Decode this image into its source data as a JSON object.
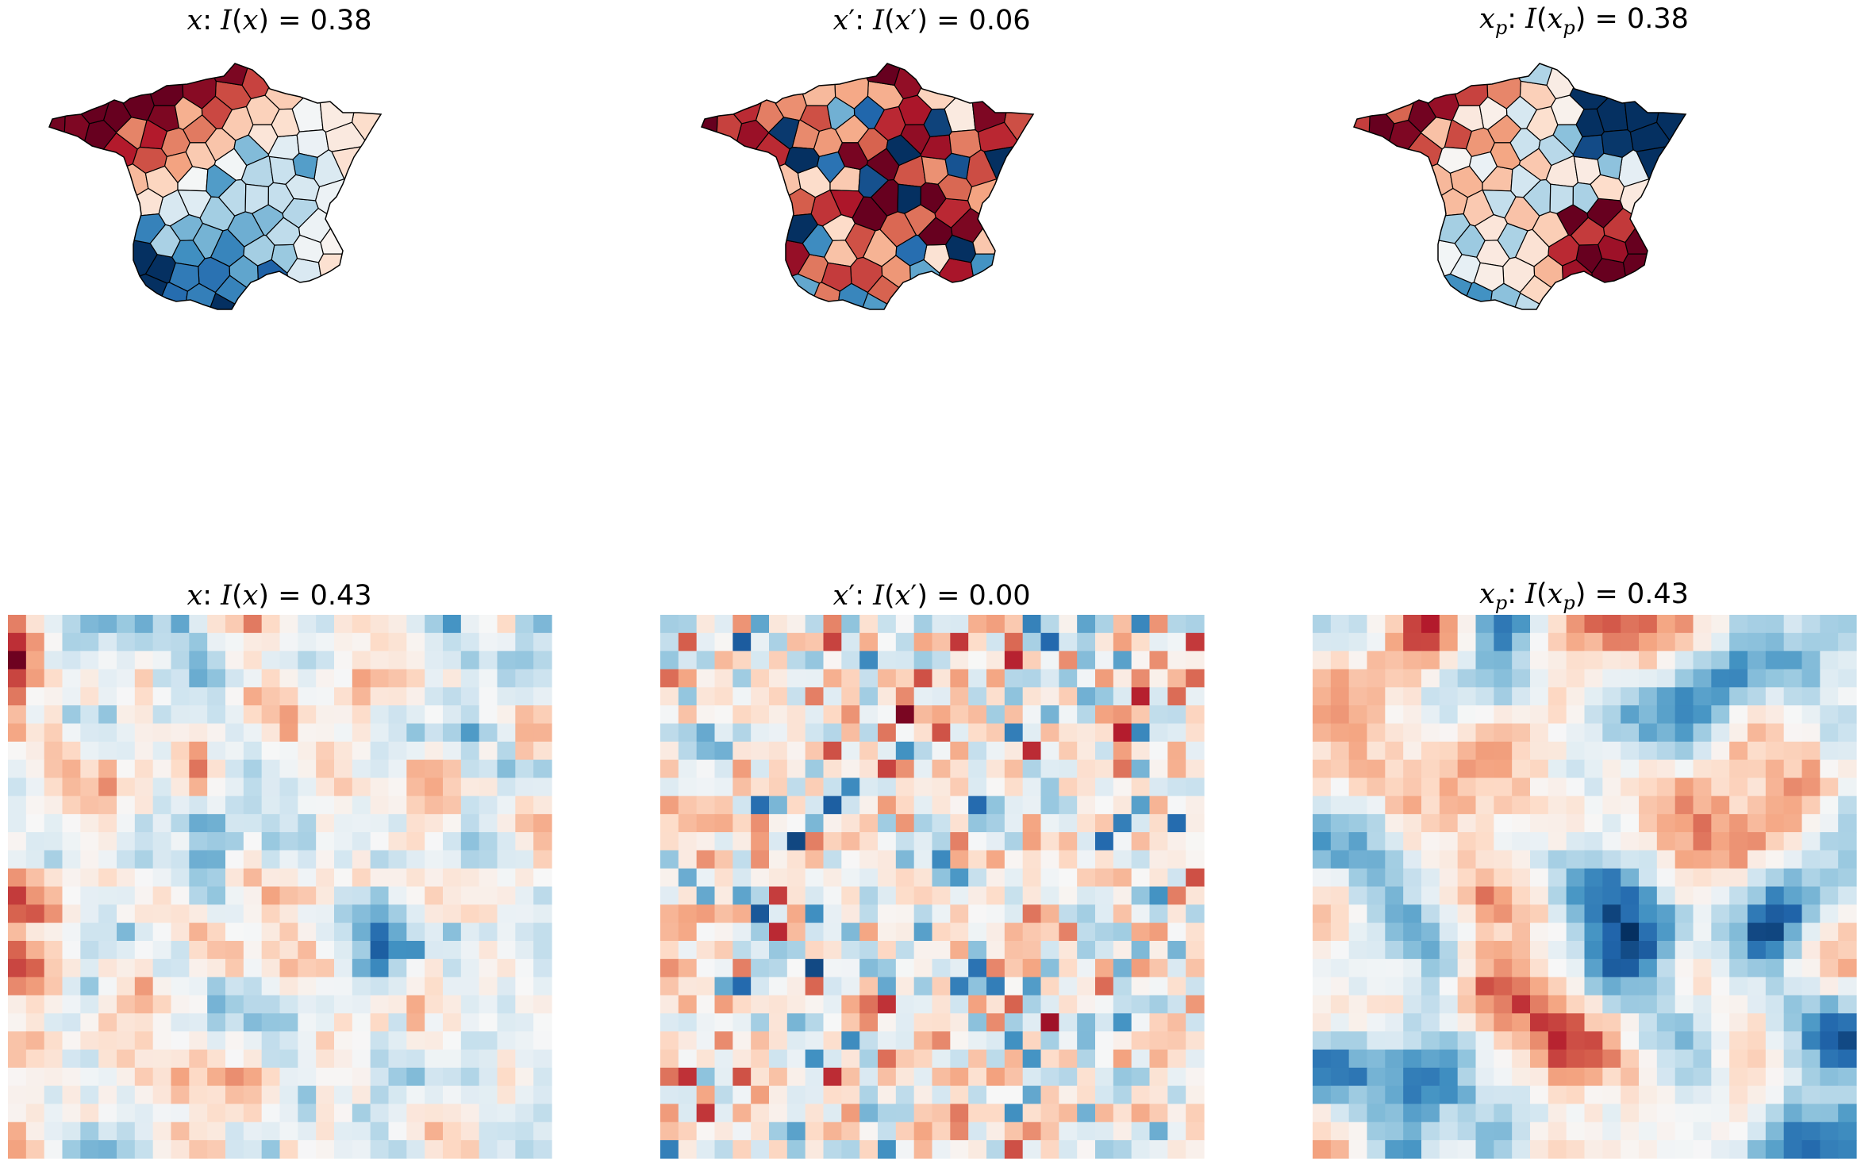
{
  "chart_data": [
    {
      "type": "choropleth",
      "row": 1,
      "variable": "x",
      "title_prefix": "x: I(x) = ",
      "title": "x: I(x) = 0.38",
      "moran_value": "0.38",
      "colormap": "RdBu_r",
      "region": "France departments",
      "pattern": "clustered"
    },
    {
      "type": "choropleth",
      "row": 1,
      "variable": "x'",
      "title_prefix": "x′: I(x′) = ",
      "title": "x′: I(x′) = 0.06",
      "moran_value": "0.06",
      "colormap": "RdBu_r",
      "region": "France departments",
      "pattern": "shuffled"
    },
    {
      "type": "choropleth",
      "row": 1,
      "variable": "x_p",
      "title_prefix": "xp: I(xp) = ",
      "title": "xp: I(xp) = 0.38",
      "moran_value": "0.38",
      "colormap": "RdBu_r",
      "region": "France departments",
      "pattern": "clustered"
    },
    {
      "type": "heatmap",
      "row": 2,
      "variable": "x",
      "title": "x: I(x) = 0.43",
      "moran_value": "0.43",
      "colormap": "RdBu_r",
      "grid_size": [
        30,
        30
      ],
      "pattern": "clustered",
      "seed": 11
    },
    {
      "type": "heatmap",
      "row": 2,
      "variable": "x'",
      "title": "x′: I(x′) = 0.00",
      "moran_value": "0.00",
      "colormap": "RdBu_r",
      "grid_size": [
        30,
        30
      ],
      "pattern": "random",
      "seed": 23
    },
    {
      "type": "heatmap",
      "row": 2,
      "variable": "x_p",
      "title": "xp: I(xp) = 0.43",
      "moran_value": "0.43",
      "colormap": "RdBu_r",
      "grid_size": [
        30,
        30
      ],
      "pattern": "smooth",
      "seed": 37
    }
  ],
  "colors": {
    "palette": [
      "#67001f",
      "#b2182b",
      "#d6604d",
      "#f4a582",
      "#fddbc7",
      "#f7f7f7",
      "#d1e5f0",
      "#92c5de",
      "#4393c3",
      "#2166ac",
      "#053061"
    ],
    "outline": "#000000",
    "background": "#ffffff"
  }
}
